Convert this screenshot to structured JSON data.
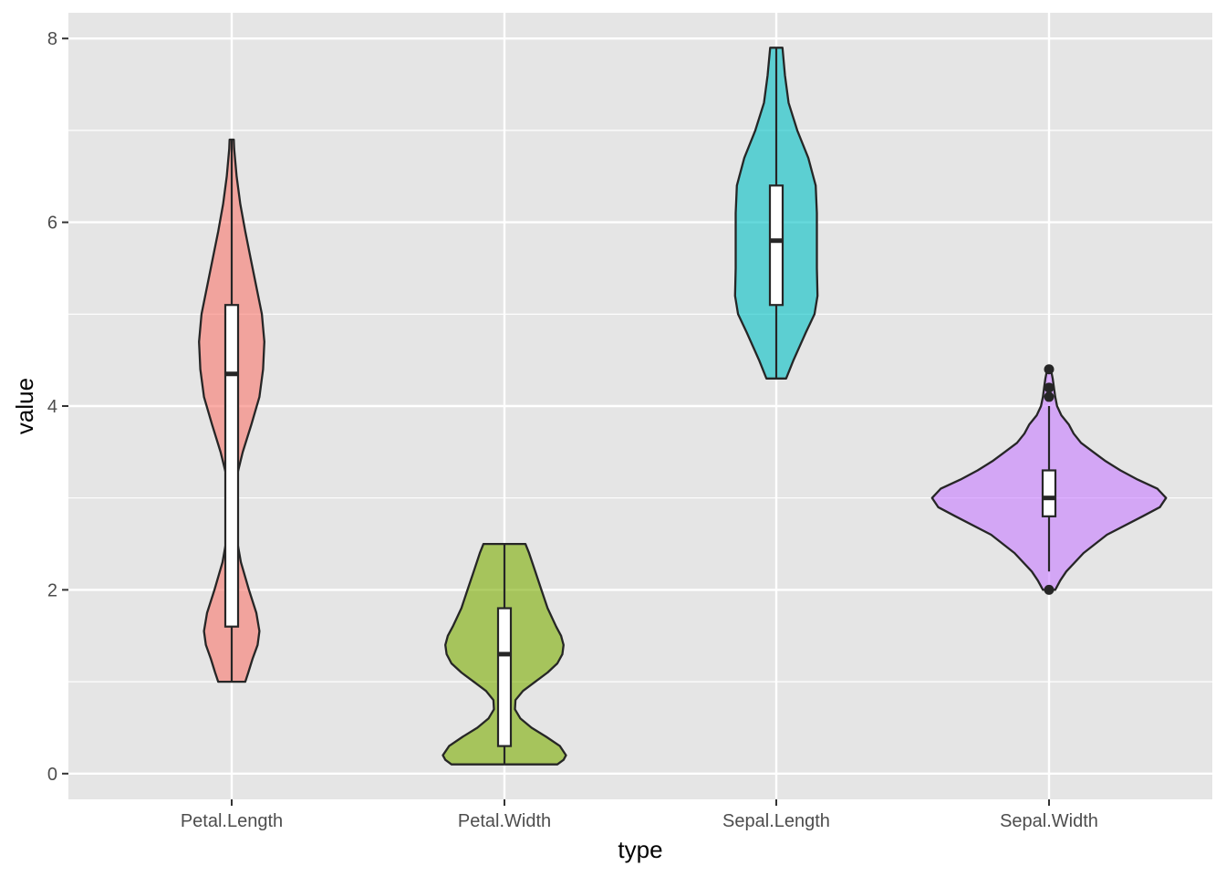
{
  "chart_data": {
    "type": "violin",
    "xlabel": "type",
    "ylabel": "value",
    "ylim": [
      -0.28,
      8.28
    ],
    "yticks": [
      0,
      2,
      4,
      6,
      8
    ],
    "grid": true,
    "legend": "none",
    "colors": {
      "panel": "#E5E5E5",
      "grid": "#FFFFFF",
      "outline": "#262626"
    },
    "categories": [
      "Petal.Length",
      "Petal.Width",
      "Sepal.Length",
      "Sepal.Width"
    ],
    "series": [
      {
        "category": "Petal.Length",
        "color": "#F8766D",
        "min": 1.0,
        "q1": 1.6,
        "median": 4.35,
        "q3": 5.1,
        "max": 6.9,
        "whisker_low": 1.0,
        "whisker_high": 6.9,
        "outliers": [],
        "density": [
          [
            1.0,
            0.11
          ],
          [
            1.1,
            0.135
          ],
          [
            1.25,
            0.17
          ],
          [
            1.4,
            0.21
          ],
          [
            1.55,
            0.225
          ],
          [
            1.75,
            0.2
          ],
          [
            2.0,
            0.14
          ],
          [
            2.3,
            0.075
          ],
          [
            2.6,
            0.035
          ],
          [
            2.9,
            0.018
          ],
          [
            3.2,
            0.035
          ],
          [
            3.5,
            0.09
          ],
          [
            3.8,
            0.16
          ],
          [
            4.1,
            0.225
          ],
          [
            4.4,
            0.255
          ],
          [
            4.7,
            0.265
          ],
          [
            5.0,
            0.245
          ],
          [
            5.3,
            0.2
          ],
          [
            5.6,
            0.155
          ],
          [
            5.9,
            0.11
          ],
          [
            6.2,
            0.07
          ],
          [
            6.5,
            0.04
          ],
          [
            6.8,
            0.02
          ],
          [
            6.9,
            0.017
          ]
        ]
      },
      {
        "category": "Petal.Width",
        "color": "#7CAE00",
        "min": 0.1,
        "q1": 0.3,
        "median": 1.3,
        "q3": 1.8,
        "max": 2.5,
        "whisker_low": 0.1,
        "whisker_high": 2.5,
        "outliers": [],
        "density": [
          [
            0.1,
            0.43
          ],
          [
            0.15,
            0.48
          ],
          [
            0.2,
            0.5
          ],
          [
            0.3,
            0.45
          ],
          [
            0.4,
            0.34
          ],
          [
            0.5,
            0.22
          ],
          [
            0.6,
            0.13
          ],
          [
            0.7,
            0.085
          ],
          [
            0.8,
            0.09
          ],
          [
            0.9,
            0.15
          ],
          [
            1.0,
            0.25
          ],
          [
            1.1,
            0.35
          ],
          [
            1.2,
            0.43
          ],
          [
            1.3,
            0.47
          ],
          [
            1.4,
            0.48
          ],
          [
            1.5,
            0.46
          ],
          [
            1.6,
            0.42
          ],
          [
            1.8,
            0.35
          ],
          [
            2.0,
            0.3
          ],
          [
            2.2,
            0.25
          ],
          [
            2.4,
            0.2
          ],
          [
            2.5,
            0.17
          ]
        ]
      },
      {
        "category": "Sepal.Length",
        "color": "#00BFC4",
        "min": 4.3,
        "q1": 5.1,
        "median": 5.8,
        "q3": 6.4,
        "max": 7.9,
        "whisker_low": 4.3,
        "whisker_high": 7.9,
        "outliers": [],
        "density": [
          [
            4.3,
            0.08
          ],
          [
            4.5,
            0.14
          ],
          [
            4.8,
            0.24
          ],
          [
            5.0,
            0.31
          ],
          [
            5.2,
            0.335
          ],
          [
            5.5,
            0.33
          ],
          [
            5.8,
            0.33
          ],
          [
            6.1,
            0.33
          ],
          [
            6.4,
            0.32
          ],
          [
            6.7,
            0.26
          ],
          [
            7.0,
            0.17
          ],
          [
            7.3,
            0.1
          ],
          [
            7.6,
            0.07
          ],
          [
            7.9,
            0.05
          ]
        ]
      },
      {
        "category": "Sepal.Width",
        "color": "#C77CFF",
        "min": 2.0,
        "q1": 2.8,
        "median": 3.0,
        "q3": 3.3,
        "max": 4.4,
        "whisker_low": 2.2,
        "whisker_high": 4.0,
        "outliers": [
          2.0,
          4.1,
          4.2,
          4.4
        ],
        "density": [
          [
            2.0,
            0.05
          ],
          [
            2.1,
            0.09
          ],
          [
            2.2,
            0.14
          ],
          [
            2.4,
            0.28
          ],
          [
            2.6,
            0.47
          ],
          [
            2.8,
            0.76
          ],
          [
            2.9,
            0.9
          ],
          [
            3.0,
            0.95
          ],
          [
            3.1,
            0.88
          ],
          [
            3.2,
            0.72
          ],
          [
            3.3,
            0.58
          ],
          [
            3.4,
            0.46
          ],
          [
            3.5,
            0.36
          ],
          [
            3.6,
            0.26
          ],
          [
            3.7,
            0.2
          ],
          [
            3.8,
            0.16
          ],
          [
            3.9,
            0.1
          ],
          [
            4.0,
            0.065
          ],
          [
            4.1,
            0.05
          ],
          [
            4.2,
            0.04
          ],
          [
            4.3,
            0.03
          ],
          [
            4.4,
            0.015
          ]
        ]
      }
    ]
  }
}
